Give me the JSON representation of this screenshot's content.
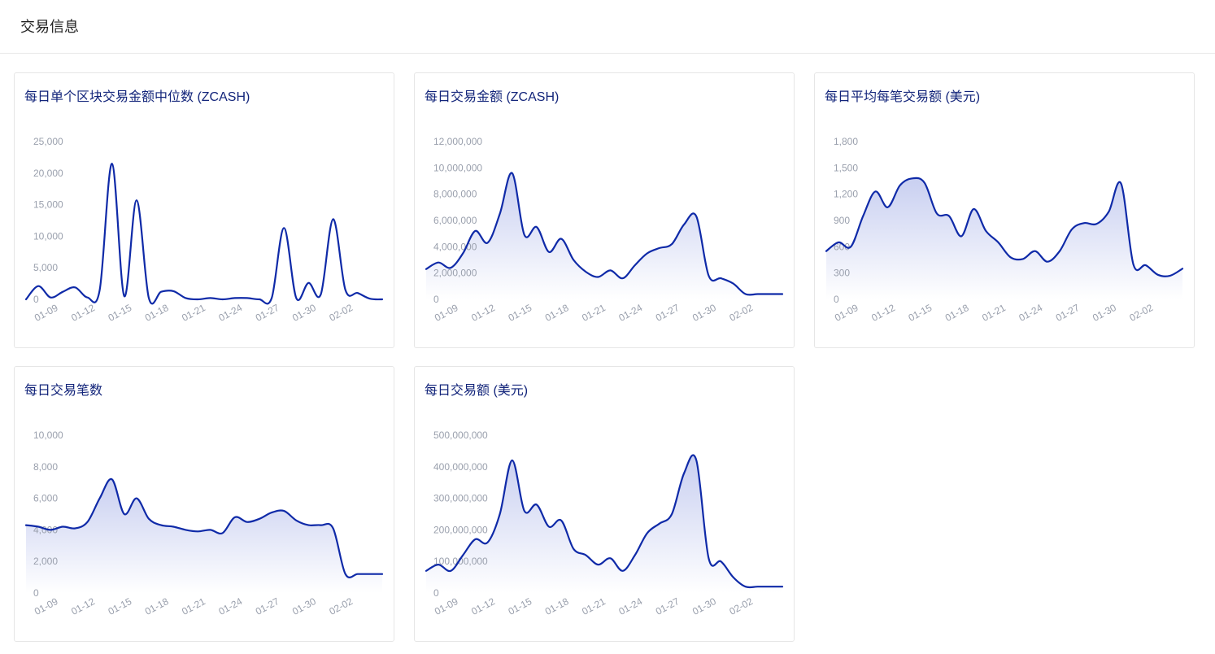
{
  "header": {
    "title": "交易信息"
  },
  "styles": {
    "line_color": "#0f2aa8",
    "fill_top": "#c6cdf0",
    "fill_bottom": "#ffffff",
    "title_color": "#12247a",
    "tick_color": "#9aa0ad"
  },
  "chart_data": [
    {
      "type": "area",
      "title": "每日单个区块交易金额中位数 (ZCASH)",
      "filled": false,
      "ylim": [
        0,
        25000
      ],
      "yticks": [
        "25,000",
        "20,000",
        "15,000",
        "10,000",
        "5,000",
        "0"
      ],
      "xtick_labels": [
        "01-09",
        "01-12",
        "01-15",
        "01-18",
        "01-21",
        "01-24",
        "01-27",
        "01-30",
        "02-02"
      ],
      "x": [
        0,
        1,
        2,
        3,
        4,
        5,
        6,
        7,
        8,
        9,
        10,
        11,
        12,
        13,
        14,
        15,
        16,
        17,
        18,
        19,
        20,
        21,
        22,
        23,
        24,
        25,
        26,
        27,
        28,
        29
      ],
      "values": [
        0,
        2100,
        300,
        1200,
        1900,
        300,
        1500,
        21500,
        500,
        15700,
        200,
        1200,
        1300,
        200,
        0,
        200,
        0,
        200,
        200,
        0,
        200,
        11300,
        200,
        2600,
        800,
        12700,
        1500,
        1000,
        100,
        0
      ]
    },
    {
      "type": "area",
      "title": "每日交易金额 (ZCASH)",
      "filled": true,
      "ylim": [
        0,
        12000000
      ],
      "yticks": [
        "12,000,000",
        "10,000,000",
        "8,000,000",
        "6,000,000",
        "4,000,000",
        "2,000,000",
        "0"
      ],
      "xtick_labels": [
        "01-09",
        "01-12",
        "01-15",
        "01-18",
        "01-21",
        "01-24",
        "01-27",
        "01-30",
        "02-02"
      ],
      "x": [
        0,
        1,
        2,
        3,
        4,
        5,
        6,
        7,
        8,
        9,
        10,
        11,
        12,
        13,
        14,
        15,
        16,
        17,
        18,
        19,
        20,
        21,
        22,
        23,
        24,
        25,
        26,
        27,
        28,
        29
      ],
      "values": [
        2300000,
        2800000,
        2400000,
        3500000,
        5200000,
        4300000,
        6500000,
        9600000,
        4900000,
        5500000,
        3600000,
        4600000,
        3000000,
        2100000,
        1700000,
        2200000,
        1600000,
        2600000,
        3500000,
        3900000,
        4200000,
        5700000,
        6300000,
        1800000,
        1600000,
        1200000,
        400000,
        400000,
        400000,
        400000
      ]
    },
    {
      "type": "area",
      "title": "每日平均每笔交易额 (美元)",
      "filled": true,
      "ylim": [
        0,
        1800
      ],
      "yticks": [
        "1,800",
        "1,500",
        "1,200",
        "900",
        "600",
        "300",
        "0"
      ],
      "xtick_labels": [
        "01-09",
        "01-12",
        "01-15",
        "01-18",
        "01-21",
        "01-24",
        "01-27",
        "01-30",
        "02-02"
      ],
      "x": [
        0,
        1,
        2,
        3,
        4,
        5,
        6,
        7,
        8,
        9,
        10,
        11,
        12,
        13,
        14,
        15,
        16,
        17,
        18,
        19,
        20,
        21,
        22,
        23,
        24,
        25,
        26,
        27,
        28,
        29
      ],
      "values": [
        550,
        650,
        600,
        950,
        1230,
        1050,
        1300,
        1380,
        1330,
        980,
        950,
        720,
        1030,
        780,
        650,
        480,
        460,
        550,
        430,
        550,
        800,
        870,
        860,
        1000,
        1320,
        400,
        390,
        280,
        270,
        350
      ]
    },
    {
      "type": "area",
      "title": "每日交易笔数",
      "filled": true,
      "ylim": [
        0,
        10000
      ],
      "yticks": [
        "10,000",
        "8,000",
        "6,000",
        "4,000",
        "2,000",
        "0"
      ],
      "xtick_labels": [
        "01-09",
        "01-12",
        "01-15",
        "01-18",
        "01-21",
        "01-24",
        "01-27",
        "01-30",
        "02-02"
      ],
      "x": [
        0,
        1,
        2,
        3,
        4,
        5,
        6,
        7,
        8,
        9,
        10,
        11,
        12,
        13,
        14,
        15,
        16,
        17,
        18,
        19,
        20,
        21,
        22,
        23,
        24,
        25,
        26,
        27,
        28,
        29
      ],
      "values": [
        4300,
        4200,
        4000,
        4200,
        4100,
        4500,
        6000,
        7200,
        5000,
        6000,
        4700,
        4300,
        4200,
        4000,
        3900,
        4000,
        3800,
        4800,
        4500,
        4700,
        5100,
        5200,
        4600,
        4300,
        4300,
        4100,
        1200,
        1200,
        1200,
        1200
      ]
    },
    {
      "type": "area",
      "title": "每日交易额 (美元)",
      "filled": true,
      "ylim": [
        0,
        500000000
      ],
      "yticks": [
        "500,000,000",
        "400,000,000",
        "300,000,000",
        "200,000,000",
        "100,000,000",
        "0"
      ],
      "xtick_labels": [
        "01-09",
        "01-12",
        "01-15",
        "01-18",
        "01-21",
        "01-24",
        "01-27",
        "01-30",
        "02-02"
      ],
      "x": [
        0,
        1,
        2,
        3,
        4,
        5,
        6,
        7,
        8,
        9,
        10,
        11,
        12,
        13,
        14,
        15,
        16,
        17,
        18,
        19,
        20,
        21,
        22,
        23,
        24,
        25,
        26,
        27,
        28,
        29
      ],
      "values": [
        70000000,
        90000000,
        70000000,
        120000000,
        170000000,
        160000000,
        250000000,
        420000000,
        260000000,
        280000000,
        210000000,
        230000000,
        140000000,
        120000000,
        90000000,
        110000000,
        70000000,
        120000000,
        190000000,
        220000000,
        250000000,
        380000000,
        420000000,
        110000000,
        100000000,
        50000000,
        20000000,
        20000000,
        20000000,
        20000000
      ]
    }
  ]
}
